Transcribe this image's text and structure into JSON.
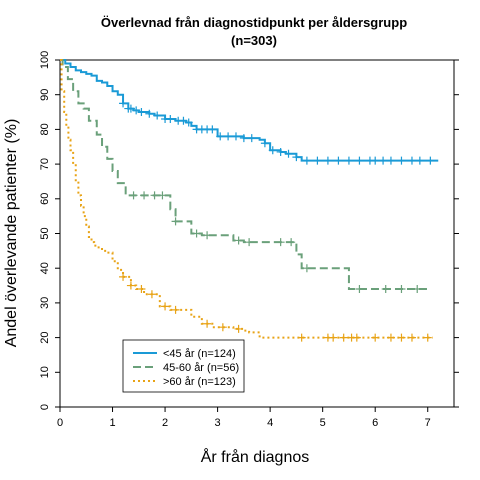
{
  "chart_data": {
    "type": "line",
    "subtype": "kaplan-meier",
    "title": "Överlevnad från diagnostidpunkt per åldersgrupp",
    "subtitle": "(n=303)",
    "xlabel": "År från diagnos",
    "ylabel": "Andel överlevande patienter (%)",
    "xlim": [
      0,
      7.5
    ],
    "ylim": [
      0,
      100
    ],
    "xticks": [
      "0",
      "1",
      "2",
      "3",
      "4",
      "5",
      "6",
      "7"
    ],
    "yticks": [
      "0",
      "10",
      "20",
      "30",
      "40",
      "50",
      "60",
      "70",
      "80",
      "90",
      "100"
    ],
    "grid": false,
    "legend_position": "bottom-left",
    "series": [
      {
        "name": "<45 år (n=124)",
        "color": "#1a9ad6",
        "dash": "solid",
        "x": [
          0,
          0.1,
          0.2,
          0.3,
          0.4,
          0.5,
          0.6,
          0.7,
          0.8,
          0.9,
          1.0,
          1.1,
          1.2,
          1.3,
          1.4,
          1.5,
          1.7,
          1.8,
          2.0,
          2.2,
          2.4,
          2.5,
          2.6,
          3.0,
          3.5,
          3.8,
          3.9,
          4.0,
          4.2,
          4.3,
          4.5,
          4.6,
          7.2
        ],
        "y": [
          100,
          99,
          98,
          97,
          96.5,
          96,
          95.5,
          94,
          93.5,
          92.5,
          91,
          90,
          87.5,
          86,
          85.5,
          85,
          84.5,
          84,
          83,
          82.5,
          82,
          81,
          80,
          78,
          77.5,
          77,
          76,
          74,
          73.5,
          73,
          72,
          71,
          71
        ],
        "censor_x": [
          1.2,
          1.3,
          1.35,
          1.45,
          1.55,
          1.7,
          1.85,
          2.0,
          2.1,
          2.25,
          2.35,
          2.45,
          2.6,
          2.7,
          2.8,
          2.9,
          3.05,
          3.2,
          3.35,
          3.5,
          3.65,
          3.9,
          4.05,
          4.2,
          4.35,
          4.5,
          4.7,
          4.9,
          5.1,
          5.3,
          5.5,
          5.7,
          5.9,
          6.0,
          6.15,
          6.3,
          6.5,
          6.7,
          6.85,
          7.05
        ]
      },
      {
        "name": "45-60 år (n=56)",
        "color": "#6aa07a",
        "dash": "dashed",
        "x": [
          0,
          0.05,
          0.15,
          0.25,
          0.35,
          0.45,
          0.55,
          0.7,
          0.8,
          0.9,
          1.0,
          1.1,
          1.25,
          2.1,
          2.2,
          2.5,
          2.7,
          3.3,
          3.5,
          4.5,
          4.6,
          5.5,
          5.55,
          7.0
        ],
        "y": [
          100,
          98,
          94.5,
          91,
          87.5,
          86,
          82.5,
          78.5,
          75,
          71.5,
          68,
          64.5,
          61,
          57,
          53.5,
          50,
          49.5,
          48,
          47.5,
          44,
          40,
          34,
          34,
          34
        ],
        "censor_x": [
          1.4,
          1.6,
          1.8,
          1.95,
          2.2,
          2.6,
          2.8,
          3.4,
          3.6,
          4.2,
          4.4,
          4.7,
          5.7,
          6.2,
          6.5,
          6.8
        ]
      },
      {
        "name": ">60 år (n=123)",
        "color": "#e8a316",
        "dash": "dotted",
        "x": [
          0,
          0.03,
          0.08,
          0.12,
          0.16,
          0.2,
          0.25,
          0.3,
          0.35,
          0.4,
          0.45,
          0.5,
          0.55,
          0.6,
          0.65,
          0.7,
          0.8,
          0.9,
          1.0,
          1.1,
          1.2,
          1.35,
          1.45,
          1.6,
          1.9,
          2.1,
          2.5,
          2.7,
          2.9,
          3.3,
          3.5,
          3.6,
          3.8,
          7.1
        ],
        "y": [
          100,
          91,
          85,
          81,
          77,
          74,
          70,
          65,
          61,
          58,
          55,
          52,
          49,
          47.5,
          46.5,
          46,
          45,
          44.5,
          42,
          39.5,
          37.5,
          35,
          34,
          32.5,
          29,
          28,
          26,
          24,
          23,
          22.5,
          22,
          21.5,
          20,
          20
        ],
        "censor_x": [
          1.2,
          1.35,
          1.55,
          1.75,
          2.0,
          2.2,
          2.8,
          3.1,
          3.4,
          4.6,
          5.1,
          5.2,
          5.4,
          5.55,
          5.65,
          6.0,
          6.3,
          6.5,
          6.7,
          7.0
        ]
      }
    ]
  }
}
